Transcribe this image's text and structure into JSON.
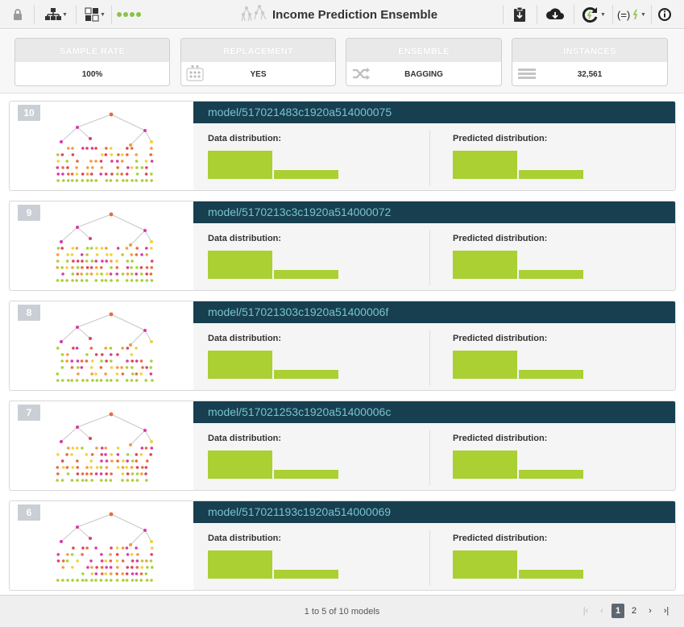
{
  "toolbar": {
    "title": "Income Prediction Ensemble",
    "icons": [
      "lock-icon",
      "tree-structure-icon",
      "config-icon",
      "status-dots-icon",
      "ensemble-logo-icon",
      "clipboard-download-icon",
      "cloud-download-icon",
      "refresh-icon",
      "formula-icon",
      "info-icon"
    ],
    "colors": {
      "status": "#8bc34a",
      "header": "#173f4f"
    }
  },
  "summary": [
    {
      "label": "SAMPLE RATE",
      "value": "100%"
    },
    {
      "label": "REPLACEMENT",
      "value": "YES"
    },
    {
      "label": "ENSEMBLE",
      "value": "BAGGING"
    },
    {
      "label": "INSTANCES",
      "value": "32,561"
    }
  ],
  "labels": {
    "data_dist": "Data distribution:",
    "pred_dist": "Predicted distribution:"
  },
  "models": [
    {
      "num": "10",
      "id": "model/517021483c1920a514000075",
      "data_dist": [
        0.76,
        0.24
      ],
      "pred_dist": [
        0.77,
        0.23
      ]
    },
    {
      "num": "9",
      "id": "model/5170213c3c1920a514000072",
      "data_dist": [
        0.76,
        0.24
      ],
      "pred_dist": [
        0.77,
        0.23
      ]
    },
    {
      "num": "8",
      "id": "model/517021303c1920a51400006f",
      "data_dist": [
        0.76,
        0.24
      ],
      "pred_dist": [
        0.77,
        0.23
      ]
    },
    {
      "num": "7",
      "id": "model/517021253c1920a51400006c",
      "data_dist": [
        0.76,
        0.24
      ],
      "pred_dist": [
        0.77,
        0.23
      ]
    },
    {
      "num": "6",
      "id": "model/517021193c1920a514000069",
      "data_dist": [
        0.76,
        0.24
      ],
      "pred_dist": [
        0.77,
        0.23
      ]
    }
  ],
  "footer": {
    "count": "1 to 5 of 10 models",
    "pages": [
      "1",
      "2"
    ],
    "current_page": "1"
  }
}
